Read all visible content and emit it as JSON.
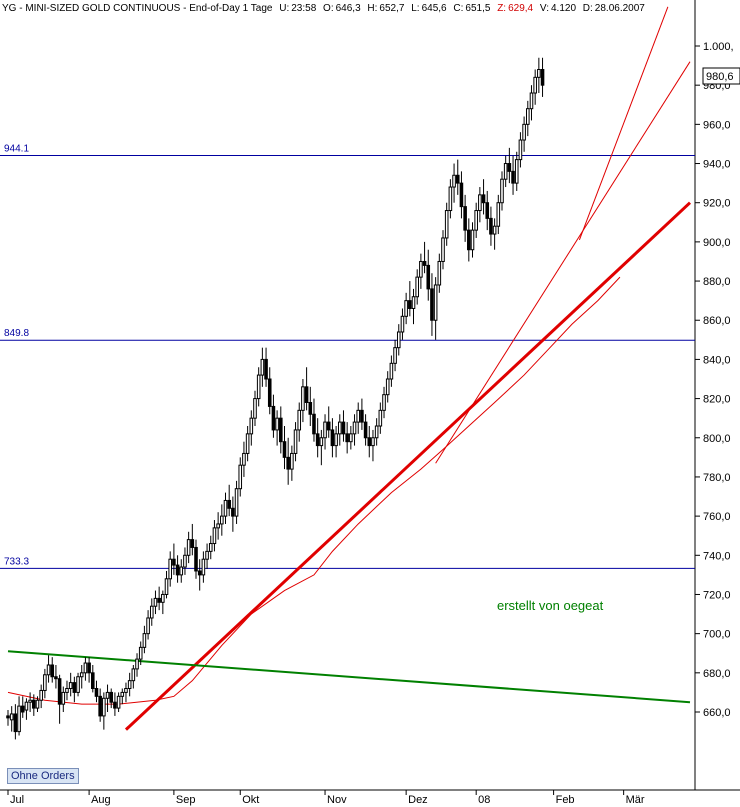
{
  "header": {
    "symbol": "YG",
    "name": "MINI-SIZED GOLD CONTINUOUS",
    "period": "End-of-Day 1 Tage",
    "fields": [
      {
        "label": "U:",
        "value": "23:58"
      },
      {
        "label": "O:",
        "value": "646,3"
      },
      {
        "label": "H:",
        "value": "652,7"
      },
      {
        "label": "L:",
        "value": "645,6"
      },
      {
        "label": "C:",
        "value": "651,5"
      },
      {
        "label": "Z:",
        "value": "629,4",
        "accent": true
      },
      {
        "label": "V:",
        "value": "4.120"
      },
      {
        "label": "D:",
        "value": "28.06.2007"
      }
    ]
  },
  "ohne_orders_label": "Ohne Orders",
  "annotation_text": "erstellt von oegeat",
  "current_price_label": "980,6",
  "colors": {
    "candle": "#000000",
    "hline": "#0000a0",
    "trend_red": "#e00000",
    "trend_green": "#008000",
    "annotation": "#008000",
    "axis_text": "#000000"
  },
  "chart_data": {
    "type": "candlestick",
    "title": "YG - MINI-SIZED GOLD CONTINUOUS",
    "ylim": [
      640,
      1020
    ],
    "y_ticks": [
      660,
      680,
      700,
      720,
      740,
      760,
      780,
      800,
      820,
      840,
      860,
      880,
      900,
      920,
      940,
      960,
      980,
      1000
    ],
    "y_tick_labels": [
      "660,0",
      "680,0",
      "700,0",
      "720,0",
      "740,0",
      "760,0",
      "780,0",
      "800,0",
      "820,0",
      "840,0",
      "860,0",
      "880,0",
      "900,0",
      "920,0",
      "940,0",
      "960,0",
      "980,0",
      "1.000,"
    ],
    "x_labels": [
      {
        "label": "Jul",
        "day": 0
      },
      {
        "label": "Aug",
        "day": 22
      },
      {
        "label": "Sep",
        "day": 45
      },
      {
        "label": "Okt",
        "day": 63
      },
      {
        "label": "Nov",
        "day": 86
      },
      {
        "label": "Dez",
        "day": 108
      },
      {
        "label": "08",
        "day": 127
      },
      {
        "label": "Feb",
        "day": 148
      },
      {
        "label": "Mär",
        "day": 167
      }
    ],
    "total_days": 185,
    "horizontal_lines": [
      {
        "value": 944.1,
        "label": "944.1"
      },
      {
        "value": 849.8,
        "label": "849.8"
      },
      {
        "value": 733.3,
        "label": "733.3"
      }
    ],
    "trendlines": [
      {
        "name": "thick-red",
        "color": "#e00000",
        "width": 3,
        "from": [
          32,
          651
        ],
        "to": [
          185,
          920
        ]
      },
      {
        "name": "thin-red-1",
        "color": "#e00000",
        "width": 1,
        "from": [
          116,
          787
        ],
        "to": [
          185,
          992
        ]
      },
      {
        "name": "thin-red-2",
        "color": "#e00000",
        "width": 1,
        "from": [
          155,
          901
        ],
        "to": [
          179,
          1020
        ]
      },
      {
        "name": "green-resistance",
        "color": "#008000",
        "width": 2,
        "from": [
          0,
          691
        ],
        "to": [
          185,
          665
        ]
      }
    ],
    "moving_average": {
      "color": "#e00000",
      "points": [
        [
          0,
          670
        ],
        [
          10,
          666
        ],
        [
          20,
          664
        ],
        [
          30,
          664
        ],
        [
          40,
          666
        ],
        [
          45,
          668
        ],
        [
          50,
          676
        ],
        [
          58,
          694
        ],
        [
          66,
          710
        ],
        [
          75,
          722
        ],
        [
          83,
          730
        ],
        [
          88,
          742
        ],
        [
          95,
          756
        ],
        [
          104,
          772
        ],
        [
          112,
          784
        ],
        [
          118,
          794
        ],
        [
          125,
          806
        ],
        [
          132,
          818
        ],
        [
          140,
          832
        ],
        [
          147,
          846
        ],
        [
          153,
          858
        ],
        [
          160,
          870
        ],
        [
          166,
          882
        ]
      ]
    },
    "candles": [
      [
        0,
        658,
        661,
        653,
        657
      ],
      [
        1,
        656,
        663,
        650,
        659
      ],
      [
        2,
        659,
        664,
        646,
        650
      ],
      [
        3,
        650,
        668,
        648,
        663
      ],
      [
        4,
        663,
        668,
        657,
        660
      ],
      [
        5,
        661,
        667,
        656,
        665
      ],
      [
        6,
        665,
        670,
        660,
        666
      ],
      [
        7,
        666,
        669,
        658,
        662
      ],
      [
        8,
        662,
        668,
        660,
        666
      ],
      [
        9,
        666,
        674,
        662,
        671
      ],
      [
        10,
        671,
        682,
        667,
        679
      ],
      [
        11,
        679,
        689,
        675,
        684
      ],
      [
        12,
        684,
        688,
        675,
        678
      ],
      [
        13,
        678,
        684,
        672,
        677
      ],
      [
        14,
        677,
        679,
        654,
        664
      ],
      [
        15,
        664,
        673,
        660,
        670
      ],
      [
        16,
        670,
        676,
        666,
        672
      ],
      [
        17,
        672,
        680,
        668,
        675
      ],
      [
        18,
        675,
        678,
        665,
        670
      ],
      [
        19,
        670,
        680,
        668,
        678
      ],
      [
        20,
        678,
        684,
        672,
        680
      ],
      [
        21,
        680,
        688,
        676,
        685
      ],
      [
        22,
        685,
        688,
        675,
        680
      ],
      [
        23,
        680,
        684,
        670,
        672
      ],
      [
        24,
        672,
        676,
        665,
        668
      ],
      [
        25,
        668,
        672,
        655,
        658
      ],
      [
        26,
        658,
        670,
        651,
        667
      ],
      [
        27,
        667,
        674,
        660,
        670
      ],
      [
        28,
        670,
        672,
        662,
        665
      ],
      [
        29,
        665,
        670,
        658,
        662
      ],
      [
        30,
        662,
        670,
        660,
        668
      ],
      [
        31,
        668,
        672,
        664,
        670
      ],
      [
        32,
        670,
        675,
        665,
        672
      ],
      [
        33,
        672,
        680,
        668,
        676
      ],
      [
        34,
        676,
        684,
        672,
        682
      ],
      [
        35,
        682,
        690,
        678,
        687
      ],
      [
        36,
        687,
        696,
        684,
        693
      ],
      [
        37,
        693,
        704,
        690,
        700
      ],
      [
        38,
        700,
        712,
        697,
        708
      ],
      [
        39,
        708,
        718,
        704,
        714
      ],
      [
        40,
        714,
        722,
        710,
        718
      ],
      [
        41,
        718,
        724,
        712,
        716
      ],
      [
        42,
        716,
        722,
        710,
        720
      ],
      [
        43,
        720,
        732,
        718,
        728
      ],
      [
        44,
        728,
        742,
        724,
        738
      ],
      [
        45,
        738,
        746,
        730,
        735
      ],
      [
        46,
        735,
        740,
        726,
        730
      ],
      [
        47,
        730,
        738,
        726,
        734
      ],
      [
        48,
        734,
        744,
        730,
        740
      ],
      [
        49,
        740,
        752,
        736,
        748
      ],
      [
        50,
        748,
        756,
        740,
        744
      ],
      [
        51,
        744,
        748,
        728,
        732
      ],
      [
        52,
        732,
        738,
        722,
        730
      ],
      [
        53,
        730,
        742,
        726,
        738
      ],
      [
        54,
        738,
        746,
        733,
        742
      ],
      [
        55,
        742,
        750,
        738,
        746
      ],
      [
        56,
        746,
        758,
        742,
        754
      ],
      [
        57,
        754,
        762,
        748,
        756
      ],
      [
        58,
        756,
        766,
        750,
        760
      ],
      [
        59,
        760,
        772,
        756,
        768
      ],
      [
        60,
        768,
        776,
        760,
        764
      ],
      [
        61,
        764,
        770,
        752,
        760
      ],
      [
        62,
        760,
        778,
        756,
        774
      ],
      [
        63,
        774,
        790,
        770,
        786
      ],
      [
        64,
        786,
        798,
        780,
        792
      ],
      [
        65,
        792,
        806,
        788,
        802
      ],
      [
        66,
        802,
        814,
        796,
        810
      ],
      [
        67,
        810,
        824,
        806,
        820
      ],
      [
        68,
        820,
        836,
        816,
        832
      ],
      [
        69,
        832,
        846,
        826,
        840
      ],
      [
        70,
        840,
        846,
        826,
        830
      ],
      [
        71,
        830,
        836,
        812,
        816
      ],
      [
        72,
        816,
        822,
        800,
        804
      ],
      [
        73,
        804,
        814,
        796,
        810
      ],
      [
        74,
        810,
        816,
        792,
        798
      ],
      [
        75,
        798,
        806,
        784,
        790
      ],
      [
        76,
        790,
        800,
        776,
        784
      ],
      [
        77,
        784,
        796,
        778,
        792
      ],
      [
        78,
        792,
        808,
        788,
        804
      ],
      [
        79,
        804,
        818,
        798,
        814
      ],
      [
        80,
        814,
        830,
        808,
        826
      ],
      [
        81,
        826,
        836,
        814,
        818
      ],
      [
        82,
        818,
        826,
        806,
        812
      ],
      [
        83,
        812,
        820,
        798,
        802
      ],
      [
        84,
        802,
        810,
        790,
        796
      ],
      [
        85,
        796,
        804,
        786,
        800
      ],
      [
        86,
        800,
        812,
        794,
        808
      ],
      [
        87,
        808,
        816,
        800,
        804
      ],
      [
        88,
        804,
        810,
        790,
        796
      ],
      [
        89,
        796,
        806,
        790,
        802
      ],
      [
        90,
        802,
        812,
        796,
        808
      ],
      [
        91,
        808,
        814,
        798,
        802
      ],
      [
        92,
        802,
        808,
        792,
        798
      ],
      [
        93,
        798,
        806,
        794,
        802
      ],
      [
        94,
        802,
        812,
        796,
        808
      ],
      [
        95,
        808,
        818,
        802,
        814
      ],
      [
        96,
        814,
        820,
        804,
        808
      ],
      [
        97,
        808,
        812,
        796,
        800
      ],
      [
        98,
        800,
        806,
        790,
        796
      ],
      [
        99,
        796,
        804,
        788,
        800
      ],
      [
        100,
        800,
        810,
        796,
        806
      ],
      [
        101,
        806,
        818,
        802,
        814
      ],
      [
        102,
        814,
        826,
        810,
        822
      ],
      [
        103,
        822,
        834,
        818,
        830
      ],
      [
        104,
        830,
        842,
        826,
        838
      ],
      [
        105,
        838,
        850,
        834,
        846
      ],
      [
        106,
        846,
        858,
        842,
        854
      ],
      [
        107,
        854,
        866,
        850,
        862
      ],
      [
        108,
        862,
        874,
        858,
        870
      ],
      [
        109,
        870,
        880,
        862,
        866
      ],
      [
        110,
        866,
        876,
        858,
        872
      ],
      [
        111,
        872,
        886,
        868,
        882
      ],
      [
        112,
        882,
        894,
        876,
        890
      ],
      [
        113,
        890,
        900,
        884,
        888
      ],
      [
        114,
        888,
        896,
        870,
        876
      ],
      [
        115,
        876,
        884,
        852,
        860
      ],
      [
        116,
        860,
        882,
        850,
        878
      ],
      [
        117,
        878,
        894,
        874,
        890
      ],
      [
        118,
        890,
        906,
        886,
        902
      ],
      [
        119,
        902,
        920,
        898,
        916
      ],
      [
        120,
        916,
        932,
        912,
        928
      ],
      [
        121,
        928,
        940,
        920,
        934
      ],
      [
        122,
        934,
        942,
        924,
        930
      ],
      [
        123,
        930,
        936,
        912,
        918
      ],
      [
        124,
        918,
        924,
        900,
        906
      ],
      [
        125,
        906,
        912,
        890,
        896
      ],
      [
        126,
        896,
        910,
        892,
        906
      ],
      [
        127,
        906,
        920,
        902,
        916
      ],
      [
        128,
        916,
        928,
        910,
        924
      ],
      [
        129,
        924,
        932,
        914,
        920
      ],
      [
        130,
        920,
        926,
        906,
        912
      ],
      [
        131,
        912,
        918,
        898,
        904
      ],
      [
        132,
        904,
        912,
        896,
        908
      ],
      [
        133,
        908,
        924,
        904,
        920
      ],
      [
        134,
        920,
        936,
        916,
        932
      ],
      [
        135,
        932,
        944,
        928,
        940
      ],
      [
        136,
        940,
        948,
        930,
        936
      ],
      [
        137,
        936,
        944,
        924,
        930
      ],
      [
        138,
        930,
        946,
        926,
        942
      ],
      [
        139,
        942,
        956,
        938,
        952
      ],
      [
        140,
        952,
        964,
        946,
        960
      ],
      [
        141,
        960,
        972,
        954,
        968
      ],
      [
        142,
        968,
        980,
        962,
        976
      ],
      [
        143,
        976,
        988,
        970,
        984
      ],
      [
        144,
        984,
        994,
        976,
        988
      ],
      [
        145,
        988,
        994,
        974,
        980
      ]
    ]
  }
}
